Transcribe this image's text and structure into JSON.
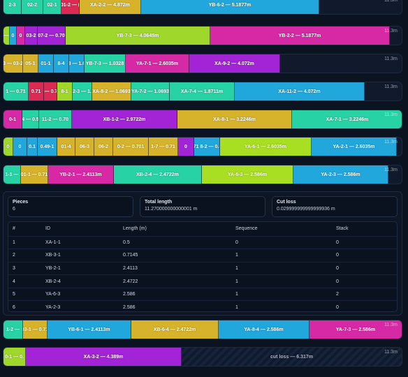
{
  "colors": {
    "teal": "#27d3a5",
    "green": "#9fd82a",
    "lime": "#a8df22",
    "gold": "#d7b32c",
    "blue": "#22a7dc",
    "magenta": "#d729a5",
    "purple": "#a224d6",
    "red": "#dc2a55",
    "loss_bg": "#152238"
  },
  "bars": [
    {
      "length_label": "11.3m",
      "segments": [
        {
          "label": "2-3",
          "color": "#27d3a5"
        },
        {
          "label": "02-2",
          "color": "#27d3a5"
        },
        {
          "label": "02-1",
          "color": "#27d3a5"
        },
        {
          "label": "01-2 — (",
          "color": "#dc2a55"
        },
        {
          "label": "XA-2-2 — 4.872m",
          "color": "#d7b32c"
        },
        {
          "label": "YB-6-2 — 5.1877m",
          "color": "#22a7dc"
        }
      ]
    },
    {
      "length_label": "11.3m",
      "segments": [
        {
          "label": "0 — 0",
          "color": "#9fd82a"
        },
        {
          "label": "0",
          "color": "#22a7dc"
        },
        {
          "label": "0",
          "color": "#d729a5"
        },
        {
          "label": "03-2",
          "color": "#a224d6"
        },
        {
          "label": "07-2 — 0.70",
          "color": "#a224d6"
        },
        {
          "label": "YB-7-3 — 4.0645m",
          "color": "#9fd82a"
        },
        {
          "label": "YB-2-2 — 5.1877m",
          "color": "#d729a5"
        }
      ]
    },
    {
      "length_label": "11.3m",
      "segments": [
        {
          "label": "3 — 03-2",
          "color": "#d7b32c"
        },
        {
          "label": "05-1",
          "color": "#d7b32c"
        },
        {
          "label": "01-1",
          "color": "#22a7dc"
        },
        {
          "label": "8-4",
          "color": "#22a7dc"
        },
        {
          "label": "8-8-3 — 1.0328",
          "color": "#22a7dc"
        },
        {
          "label": "YB-7-3 — 1.0328",
          "color": "#27d3a5"
        },
        {
          "label": "YA-7-1 — 2.6035m",
          "color": "#d729a5"
        },
        {
          "label": "XA-9-2 — 4.072m",
          "color": "#a224d6"
        }
      ]
    },
    {
      "length_label": "11.3m",
      "segments": [
        {
          "label": "1 — 0.71",
          "color": "#27d3a5"
        },
        {
          "label": "0.71",
          "color": "#dc2a55"
        },
        {
          "label": "1 — 0.71",
          "color": "#dc2a55"
        },
        {
          "label": "8-1",
          "color": "#9fd82a"
        },
        {
          "label": "0.71 2-3 — 1.0328",
          "color": "#27d3a5"
        },
        {
          "label": "XA-8-2 — 1.0693",
          "color": "#d7b32c"
        },
        {
          "label": "YA-7-2 — 1.0693",
          "color": "#27d3a5"
        },
        {
          "label": "XA-7-4 — 1.8711m",
          "color": "#27d3a5"
        },
        {
          "label": "XA-11-2 — 4.072m",
          "color": "#22a7dc"
        }
      ]
    },
    {
      "length_label": "11.3m",
      "segments": [
        {
          "label": "0-1",
          "color": "#d729a5"
        },
        {
          "label": "4 — 0.5",
          "color": "#27d3a5"
        },
        {
          "label": "11-2 — 0.70",
          "color": "#27d3a5"
        },
        {
          "label": "XB-1-2 — 2.9722m",
          "color": "#a224d6"
        },
        {
          "label": "XA-8-1 — 3.2246m",
          "color": "#d7b32c"
        },
        {
          "label": "XA-7-1 — 3.2246m",
          "color": "#27d3a5"
        }
      ]
    },
    {
      "length_label": "11.3m",
      "segments": [
        {
          "label": "0",
          "color": "#9fd82a"
        },
        {
          "label": "0",
          "color": "#22a7dc"
        },
        {
          "label": "0.1",
          "color": "#22a7dc"
        },
        {
          "label": "0.49-1",
          "color": "#22a7dc"
        },
        {
          "label": "01-4",
          "color": "#d7b32c"
        },
        {
          "label": "06-3",
          "color": "#d7b32c"
        },
        {
          "label": "06-2",
          "color": "#d7b32c"
        },
        {
          "label": "0-2 — 0.701",
          "color": "#d7b32c"
        },
        {
          "label": "1-7 — 0.71",
          "color": "#d7b32c"
        },
        {
          "label": "0",
          "color": "#a224d6"
        },
        {
          "label": "0.71 8-2 — 0.80",
          "color": "#22a7dc"
        },
        {
          "label": "YA-6-1 — 2.6035m",
          "color": "#a8df22"
        },
        {
          "label": "YA-2-1 — 2.6035m",
          "color": "#22a7dc"
        }
      ]
    },
    {
      "length_label": "11.3m",
      "segments": [
        {
          "label": "1-1 —",
          "color": "#27d3a5"
        },
        {
          "label": "01-1 — 0.71",
          "color": "#d7b32c"
        },
        {
          "label": "YB-2-1 — 2.4113m",
          "color": "#d729a5"
        },
        {
          "label": "XB-2-4 — 2.4722m",
          "color": "#27d3a5"
        },
        {
          "label": "YA-6-3 — 2.586m",
          "color": "#a8df22"
        },
        {
          "label": "YA-2-3 — 2.586m",
          "color": "#22a7dc"
        }
      ]
    },
    {
      "length_label": "11.3m",
      "segments": [
        {
          "label": "1-2 —",
          "color": "#27d3a5"
        },
        {
          "label": "03-1 — 0.71",
          "color": "#d7b32c"
        },
        {
          "label": "YB-6-1 — 2.4113m",
          "color": "#22a7dc"
        },
        {
          "label": "XB-6-4 — 2.4722m",
          "color": "#d7b32c"
        },
        {
          "label": "YA-8-4 — 2.586m",
          "color": "#22a7dc"
        },
        {
          "label": "YA-7-3 — 2.586m",
          "color": "#d729a5"
        }
      ]
    },
    {
      "length_label": "11.3m",
      "segments": [
        {
          "label": "0-1 — 0.",
          "color": "#9fd82a"
        },
        {
          "label": "XA-3-2 — 4.389m",
          "color": "#a224d6"
        },
        {
          "label": "cut loss — 6.317m",
          "color": "loss"
        }
      ]
    }
  ],
  "detail": {
    "stats": [
      {
        "label": "Pieces",
        "value": "6"
      },
      {
        "label": "Total length",
        "value": "11.270000000000001 m"
      },
      {
        "label": "Cut loss",
        "value": "0.029999999999999936 m"
      }
    ],
    "columns": [
      "#",
      "ID",
      "Length (m)",
      "Sequence",
      "Stack"
    ],
    "rows": [
      [
        "1",
        "XA-1-1",
        "0.5",
        "0",
        "0"
      ],
      [
        "2",
        "XB-3-1",
        "0.7145",
        "1",
        "0"
      ],
      [
        "3",
        "YB-2-1",
        "2.4113",
        "1",
        "0"
      ],
      [
        "4",
        "XB-2-4",
        "2.4722",
        "1",
        "0"
      ],
      [
        "5",
        "YA-6-3",
        "2.586",
        "1",
        "2"
      ],
      [
        "6",
        "YA-2-3",
        "2.586",
        "1",
        "0"
      ]
    ]
  }
}
